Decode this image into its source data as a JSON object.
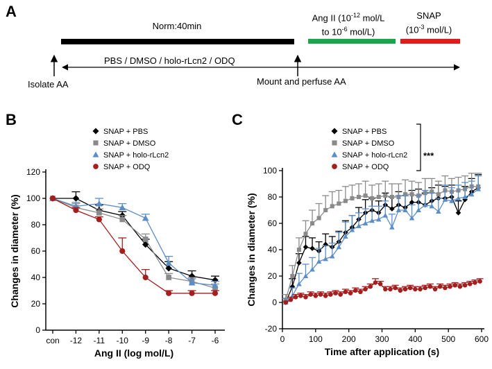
{
  "panelA": {
    "letter": "A",
    "norm_label": "Norm:40min",
    "angii_line1_pre": "Ang II (10",
    "angii_line1_sup": "-12",
    "angii_line1_post": " mol/L",
    "angii_line2_pre": "to 10",
    "angii_line2_sup": "-6",
    "angii_line2_post": " mol/L)",
    "snap_line1": "SNAP",
    "snap_line2_pre": "(10",
    "snap_line2_sup": "-3",
    "snap_line2_post": " mol/L)",
    "treatments": "PBS / DMSO / holo-rLcn2 / ODQ",
    "isolate": "Isolate AA",
    "mount": "Mount and perfuse AA",
    "colors": {
      "norm": "#000000",
      "angii": "#1aa64a",
      "snap": "#e01b1b"
    }
  },
  "chart_data": [
    {
      "panel": "B",
      "type": "line",
      "ylabel": "Changes in diameter (%)",
      "xlabel": "Ang II (log mol/L)",
      "categories": [
        "con",
        "-12",
        "-11",
        "-10",
        "-9",
        "-8",
        "-7",
        "-6"
      ],
      "ylim": [
        0,
        120
      ],
      "yticks": [
        0,
        20,
        40,
        60,
        80,
        100,
        120
      ],
      "series": [
        {
          "name": "SNAP + PBS",
          "color": "#000000",
          "marker": "diamond",
          "values": [
            100,
            100,
            91,
            87,
            65,
            47,
            41,
            38
          ],
          "errors": [
            0,
            5,
            4,
            3,
            4,
            5,
            4,
            3
          ]
        },
        {
          "name": "SNAP + DMSO",
          "color": "#8a8a8a",
          "marker": "square",
          "values": [
            100,
            93,
            89,
            84,
            69,
            40,
            37,
            32
          ],
          "errors": [
            0,
            3,
            3,
            3,
            4,
            3,
            3,
            3
          ]
        },
        {
          "name": "SNAP + holo-rLcn2",
          "color": "#5b8ec9",
          "marker": "triangle",
          "values": [
            100,
            94,
            96,
            93,
            85,
            51,
            36,
            34
          ],
          "errors": [
            0,
            3,
            4,
            3,
            3,
            5,
            3,
            3
          ]
        },
        {
          "name": "SNAP + ODQ",
          "color": "#a51e1e",
          "marker": "circle",
          "values": [
            100,
            91,
            84,
            60,
            40,
            28,
            28,
            28
          ],
          "errors": [
            0,
            2,
            2,
            10,
            6,
            2,
            2,
            2
          ]
        }
      ]
    },
    {
      "panel": "C",
      "type": "line",
      "ylabel": "Changes in diameter (%)",
      "xlabel": "Time after application (s)",
      "xlim": [
        0,
        600
      ],
      "xticks": [
        0,
        100,
        200,
        300,
        400,
        500,
        600
      ],
      "ylim": [
        -20,
        100
      ],
      "yticks": [
        -20,
        0,
        20,
        40,
        60,
        80,
        100
      ],
      "significance": "***",
      "series": [
        {
          "name": "SNAP + PBS",
          "color": "#000000",
          "marker": "diamond",
          "x": [
            10,
            30,
            50,
            70,
            90,
            110,
            130,
            150,
            170,
            190,
            210,
            230,
            250,
            270,
            290,
            310,
            330,
            350,
            370,
            390,
            410,
            430,
            450,
            470,
            490,
            510,
            530,
            550,
            570,
            590
          ],
          "values": [
            0,
            12,
            30,
            42,
            41,
            39,
            44,
            42,
            46,
            53,
            57,
            63,
            68,
            70,
            68,
            74,
            71,
            74,
            72,
            76,
            76,
            74,
            77,
            79,
            79,
            80,
            68,
            78,
            84,
            87
          ],
          "errors": [
            3,
            6,
            7,
            8,
            8,
            7,
            8,
            8,
            8,
            9,
            9,
            9,
            10,
            9,
            9,
            9,
            9,
            10,
            9,
            9,
            10,
            9,
            10,
            10,
            9,
            9,
            9,
            10,
            10,
            10
          ]
        },
        {
          "name": "SNAP + DMSO",
          "color": "#8a8a8a",
          "marker": "square",
          "x": [
            10,
            30,
            50,
            70,
            90,
            110,
            130,
            150,
            170,
            190,
            210,
            230,
            250,
            270,
            290,
            310,
            330,
            350,
            370,
            390,
            410,
            430,
            450,
            470,
            490,
            510,
            530,
            550,
            570,
            590
          ],
          "values": [
            2,
            20,
            40,
            52,
            60,
            64,
            70,
            73,
            75,
            77,
            79,
            80,
            81,
            79,
            80,
            81,
            80,
            80,
            82,
            82,
            81,
            83,
            84,
            82,
            85,
            84,
            85,
            86,
            88,
            88
          ],
          "errors": [
            4,
            8,
            9,
            10,
            10,
            11,
            11,
            11,
            10,
            11,
            10,
            10,
            11,
            10,
            10,
            11,
            10,
            10,
            11,
            10,
            10,
            11,
            10,
            10,
            11,
            10,
            10,
            10,
            10,
            10
          ]
        },
        {
          "name": "SNAP + holo-rLcn2",
          "color": "#5b8ec9",
          "marker": "triangle",
          "x": [
            10,
            30,
            50,
            70,
            90,
            110,
            130,
            150,
            170,
            190,
            210,
            230,
            250,
            270,
            290,
            310,
            330,
            350,
            370,
            390,
            410,
            430,
            450,
            470,
            490,
            510,
            530,
            550,
            570,
            590
          ],
          "values": [
            0,
            5,
            14,
            20,
            25,
            31,
            33,
            35,
            42,
            50,
            55,
            58,
            60,
            62,
            63,
            66,
            57,
            70,
            70,
            64,
            70,
            74,
            73,
            69,
            78,
            77,
            79,
            80,
            82,
            86
          ],
          "errors": [
            3,
            6,
            8,
            9,
            9,
            10,
            10,
            10,
            11,
            11,
            11,
            10,
            11,
            11,
            10,
            11,
            10,
            11,
            11,
            10,
            11,
            11,
            10,
            10,
            11,
            10,
            10,
            11,
            10,
            10
          ]
        },
        {
          "name": "SNAP + ODQ",
          "color": "#a51e1e",
          "marker": "circle",
          "x": [
            10,
            25,
            40,
            55,
            70,
            85,
            100,
            115,
            130,
            145,
            160,
            175,
            190,
            205,
            220,
            235,
            250,
            265,
            280,
            295,
            310,
            325,
            340,
            355,
            370,
            385,
            400,
            415,
            430,
            445,
            460,
            475,
            490,
            505,
            520,
            535,
            550,
            565,
            580,
            595
          ],
          "values": [
            0,
            2,
            4,
            5,
            4,
            6,
            5,
            6,
            5,
            6,
            7,
            6,
            8,
            7,
            9,
            8,
            10,
            12,
            15,
            14,
            10,
            10,
            11,
            9,
            10,
            11,
            10,
            10,
            11,
            12,
            10,
            12,
            11,
            12,
            13,
            12,
            13,
            14,
            15,
            16
          ],
          "errors": [
            1,
            2,
            2,
            2,
            2,
            2,
            2,
            2,
            2,
            2,
            2,
            2,
            2,
            2,
            2,
            2,
            2,
            2,
            3,
            2,
            2,
            2,
            2,
            2,
            2,
            2,
            2,
            2,
            2,
            2,
            2,
            2,
            2,
            2,
            2,
            2,
            2,
            2,
            2,
            2
          ]
        }
      ]
    }
  ]
}
